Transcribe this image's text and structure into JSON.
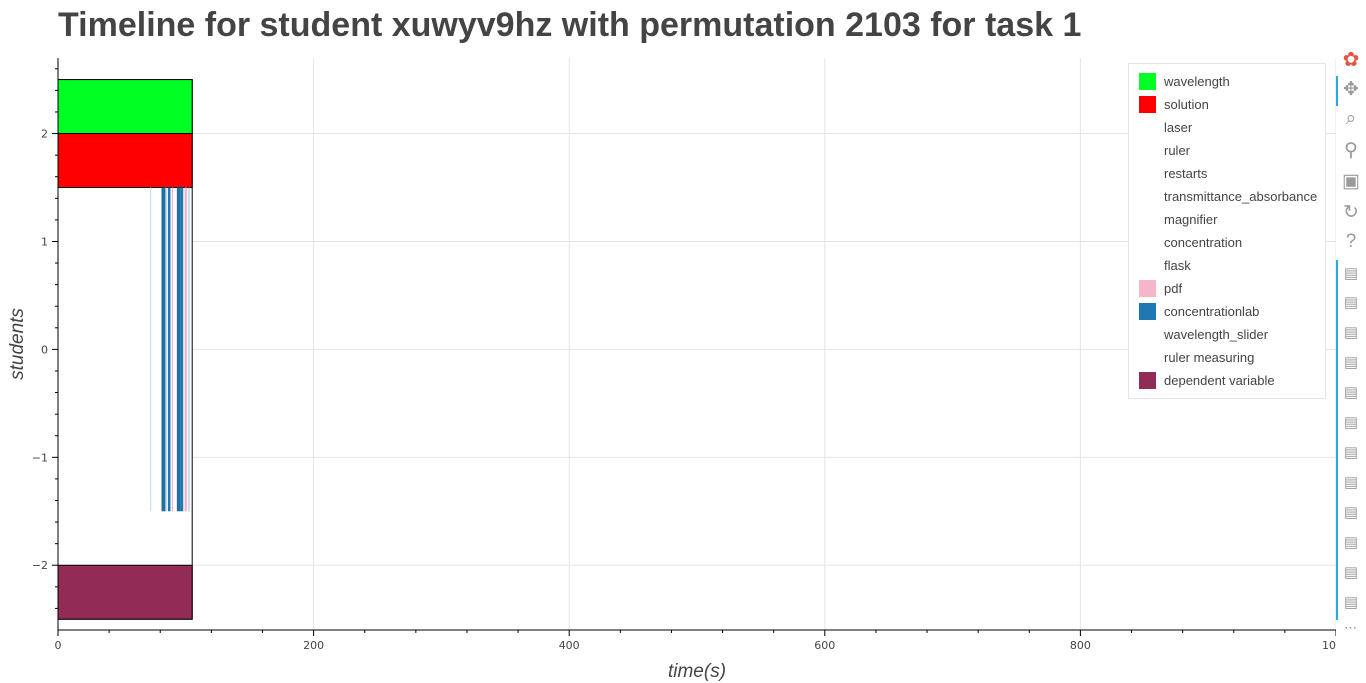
{
  "title": "Timeline for student xuwyv9hz with permutation 2103 for task 1",
  "chart_data": {
    "type": "bar",
    "orientation": "horizontal-timeline",
    "title": "Timeline for student xuwyv9hz with permutation 2103 for task 1",
    "xlabel": "time(s)",
    "ylabel": "students",
    "xlim": [
      0,
      1000
    ],
    "ylim": [
      -2.6,
      2.7
    ],
    "x_ticks": [
      0,
      200,
      400,
      600,
      800,
      1000
    ],
    "y_ticks": [
      -2,
      -1,
      0,
      1,
      2
    ],
    "grid": true,
    "legend_position": "top-right",
    "series": [
      {
        "name": "wavelength",
        "color": "#00ff22"
      },
      {
        "name": "solution",
        "color": "#ff0000"
      },
      {
        "name": "laser",
        "color": "#ffffff"
      },
      {
        "name": "ruler",
        "color": "#ffffff"
      },
      {
        "name": "restarts",
        "color": "#ffffff"
      },
      {
        "name": "transmittance_absorbance",
        "color": "#ffffff"
      },
      {
        "name": "magnifier",
        "color": "#ffffff"
      },
      {
        "name": "concentration",
        "color": "#ffffff"
      },
      {
        "name": "flask",
        "color": "#ffffff"
      },
      {
        "name": "pdf",
        "color": "#f4b6c8"
      },
      {
        "name": "concentrationlab",
        "color": "#1f77b4"
      },
      {
        "name": "wavelength_slider",
        "color": "#ffffff"
      },
      {
        "name": "ruler measuring",
        "color": "#ffffff"
      },
      {
        "name": "dependent variable",
        "color": "#922b55"
      }
    ],
    "bars": [
      {
        "series": "wavelength",
        "x0": 0,
        "x1": 105,
        "y0": 2.0,
        "y1": 2.5,
        "color": "#00ff22",
        "outline": true
      },
      {
        "series": "solution",
        "x0": 0,
        "x1": 105,
        "y0": 1.5,
        "y1": 2.0,
        "color": "#ff0000",
        "outline": true
      },
      {
        "series": "dependent variable",
        "x0": 0,
        "x1": 105,
        "y0": -2.5,
        "y1": -2.0,
        "color": "#922b55",
        "outline": true
      },
      {
        "series": "concentrationlab",
        "x0": 72,
        "x1": 73,
        "y0": -1.5,
        "y1": 1.5,
        "color": "#cfe3f1"
      },
      {
        "series": "concentrationlab",
        "x0": 81,
        "x1": 84,
        "y0": -1.5,
        "y1": 1.5,
        "color": "#1f6f9f"
      },
      {
        "series": "concentrationlab",
        "x0": 84,
        "x1": 85,
        "y0": -1.5,
        "y1": 1.5,
        "color": "#a8cbe3"
      },
      {
        "series": "concentrationlab",
        "x0": 86,
        "x1": 88,
        "y0": -1.5,
        "y1": 1.5,
        "color": "#1f77b4"
      },
      {
        "series": "pdf",
        "x0": 89,
        "x1": 90,
        "y0": -1.5,
        "y1": 1.5,
        "color": "#f4b6c8"
      },
      {
        "series": "concentrationlab",
        "x0": 93,
        "x1": 96,
        "y0": -1.5,
        "y1": 1.5,
        "color": "#1f6f9f"
      },
      {
        "series": "concentrationlab",
        "x0": 96,
        "x1": 98,
        "y0": -1.5,
        "y1": 1.5,
        "color": "#1f77b4"
      },
      {
        "series": "pdf",
        "x0": 99,
        "x1": 101,
        "y0": -1.5,
        "y1": 1.5,
        "color": "#f4b6c8"
      },
      {
        "series": "concentrationlab",
        "x0": 102,
        "x1": 103,
        "y0": -1.5,
        "y1": 1.5,
        "color": "#a8cbe3"
      }
    ],
    "frame": {
      "x0": 0,
      "x1": 105,
      "y0": -2.5,
      "y1": 2.5
    }
  },
  "toolbar": {
    "tools": [
      {
        "name": "bokeh-logo-icon",
        "glyph": "✿",
        "color": "#e8533d"
      },
      {
        "name": "pan-tool-icon",
        "glyph": "✥",
        "color": "#9a9a9a"
      },
      {
        "name": "box-zoom-tool-icon",
        "glyph": "⌕",
        "color": "#9a9a9a"
      },
      {
        "name": "wheel-zoom-tool-icon",
        "glyph": "⚲",
        "color": "#9a9a9a"
      },
      {
        "name": "save-tool-icon",
        "glyph": "▣",
        "color": "#9a9a9a"
      },
      {
        "name": "reset-tool-icon",
        "glyph": "↻",
        "color": "#9a9a9a"
      },
      {
        "name": "help-tool-icon",
        "glyph": "?",
        "color": "#9a9a9a"
      },
      {
        "name": "hover-tool-icon",
        "glyph": "▤",
        "color": "#9a9a9a"
      },
      {
        "name": "hover-tool-icon",
        "glyph": "▤",
        "color": "#9a9a9a"
      },
      {
        "name": "hover-tool-icon",
        "glyph": "▤",
        "color": "#9a9a9a"
      },
      {
        "name": "hover-tool-icon",
        "glyph": "▤",
        "color": "#9a9a9a"
      },
      {
        "name": "hover-tool-icon",
        "glyph": "▤",
        "color": "#9a9a9a"
      },
      {
        "name": "hover-tool-icon",
        "glyph": "▤",
        "color": "#9a9a9a"
      },
      {
        "name": "hover-tool-icon",
        "glyph": "▤",
        "color": "#9a9a9a"
      },
      {
        "name": "hover-tool-icon",
        "glyph": "▤",
        "color": "#9a9a9a"
      },
      {
        "name": "hover-tool-icon",
        "glyph": "▤",
        "color": "#9a9a9a"
      },
      {
        "name": "hover-tool-icon",
        "glyph": "▤",
        "color": "#9a9a9a"
      },
      {
        "name": "hover-tool-icon",
        "glyph": "▤",
        "color": "#9a9a9a"
      },
      {
        "name": "hover-tool-icon",
        "glyph": "▤",
        "color": "#9a9a9a"
      }
    ],
    "more": "⋯"
  }
}
